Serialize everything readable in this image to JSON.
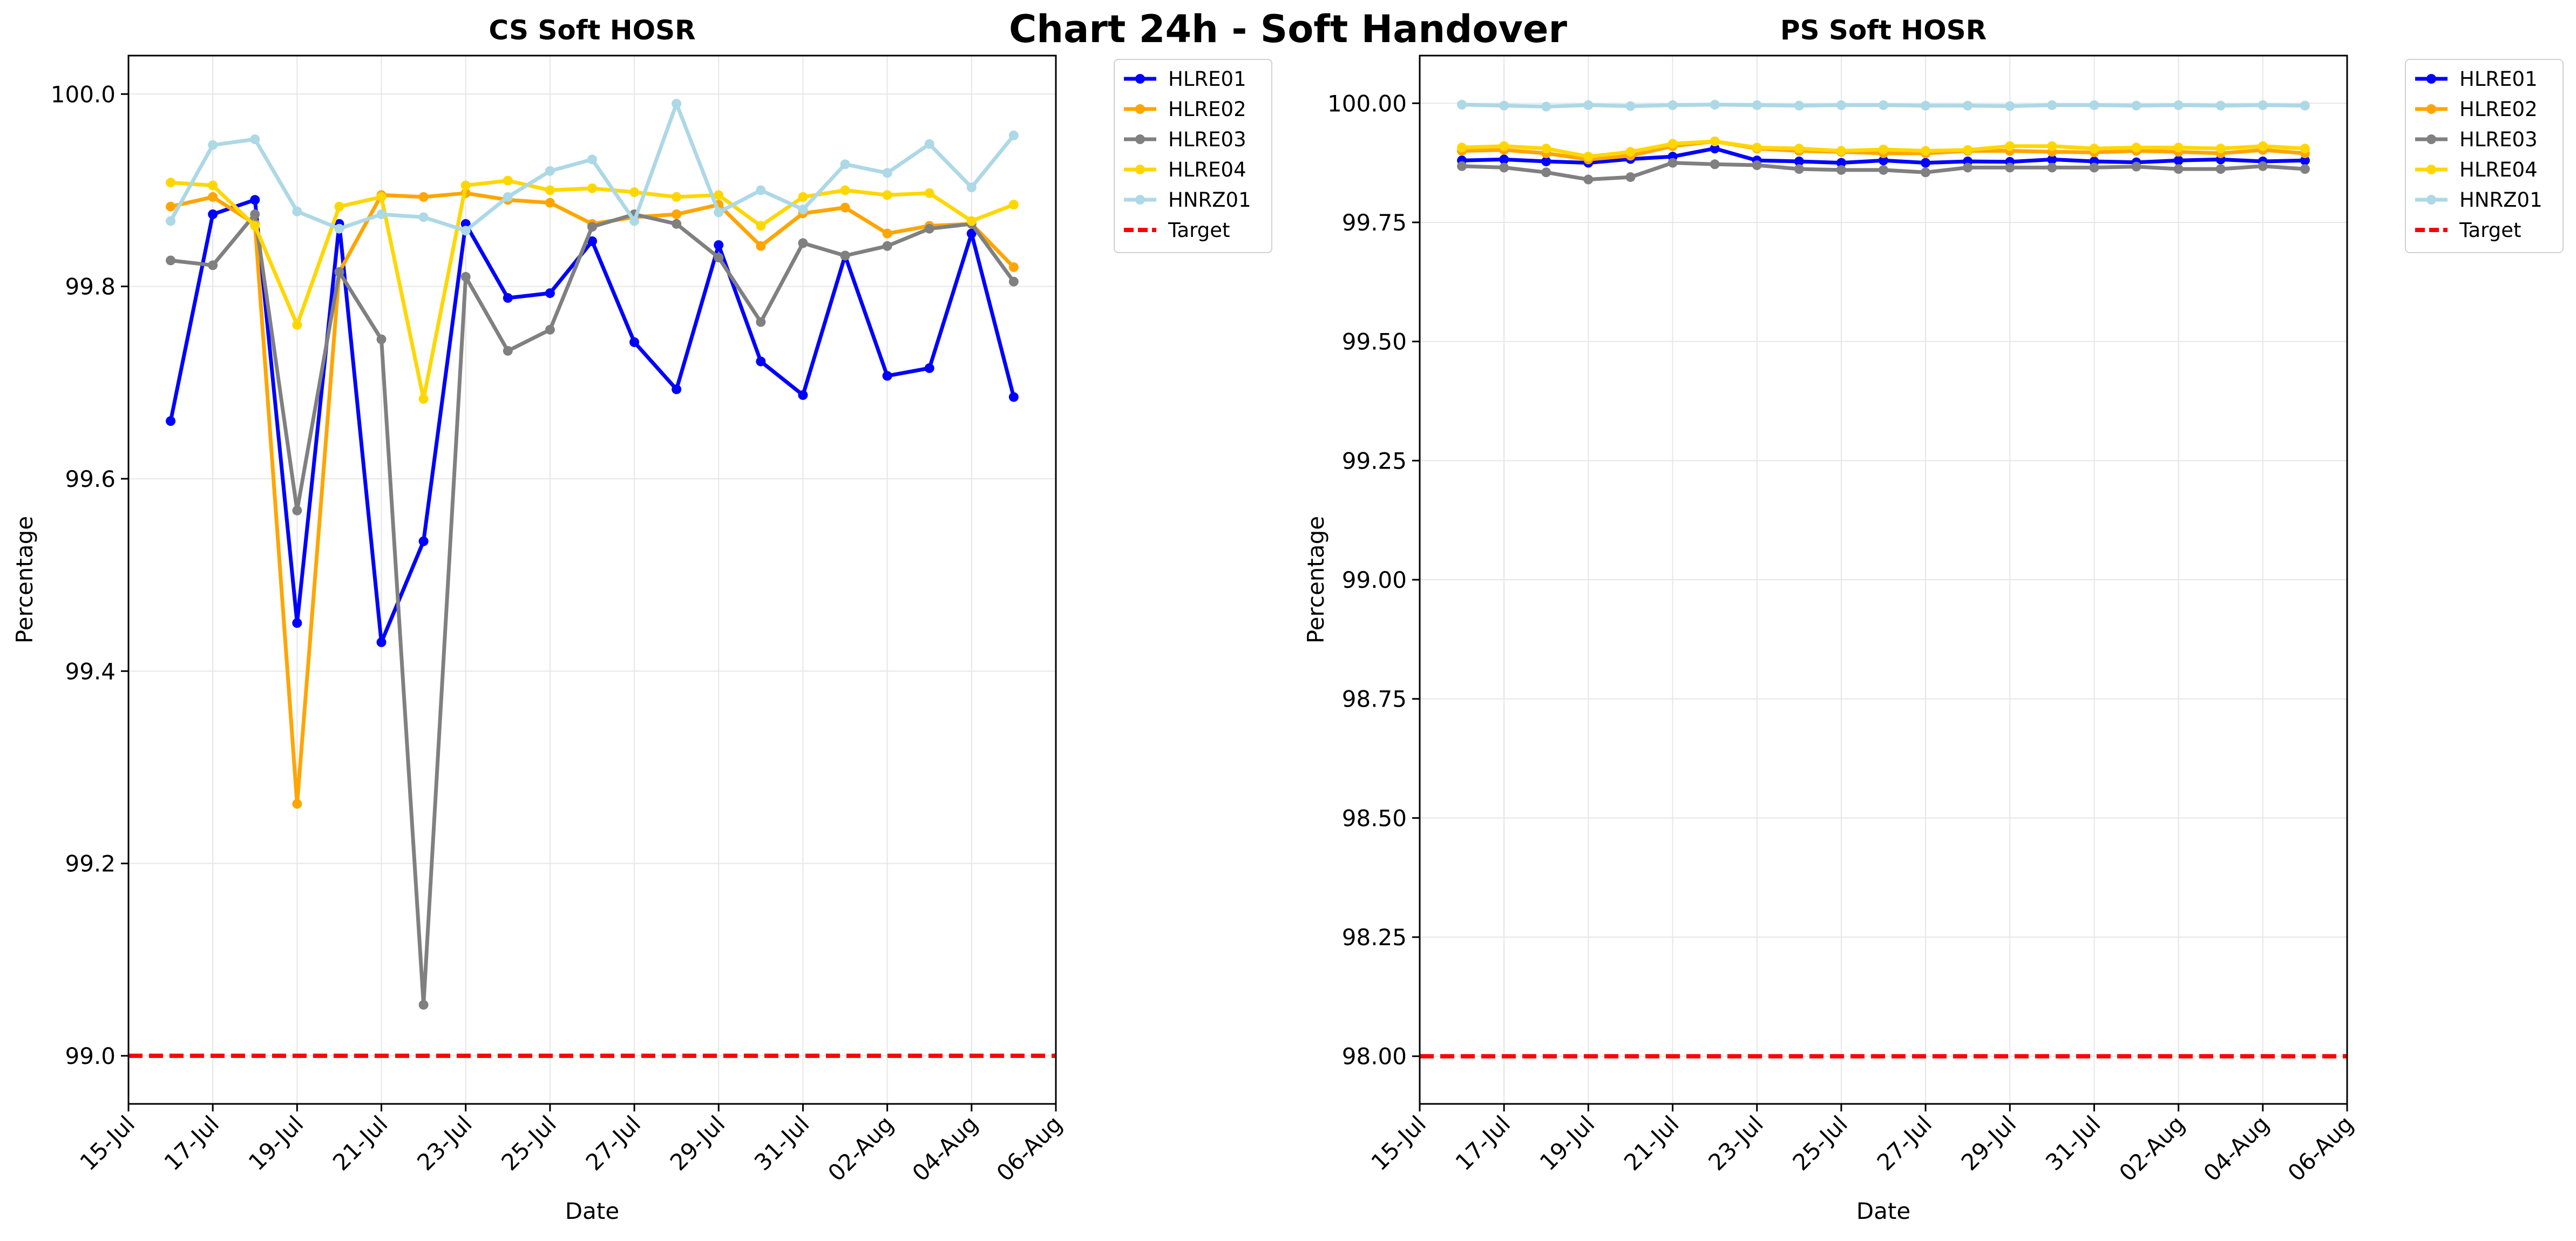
{
  "figure": {
    "title": "Chart 24h - Soft Handover",
    "background": "#ffffff"
  },
  "chart_data": [
    {
      "type": "line",
      "title": "CS Soft HOSR",
      "xlabel": "Date",
      "ylabel": "Percentage",
      "xlim": [
        "2024-07-15",
        "2024-08-06"
      ],
      "ylim": [
        98.95,
        100.04
      ],
      "x_ticks": [
        "15-Jul",
        "17-Jul",
        "19-Jul",
        "21-Jul",
        "23-Jul",
        "25-Jul",
        "27-Jul",
        "29-Jul",
        "31-Jul",
        "02-Aug",
        "04-Aug",
        "06-Aug"
      ],
      "y_ticks": [
        99.0,
        99.2,
        99.4,
        99.6,
        99.8,
        100.0
      ],
      "y_tick_decimals": 1,
      "grid": true,
      "legend_position": "outside-top-right",
      "x": [
        "2024-07-16",
        "2024-07-17",
        "2024-07-18",
        "2024-07-19",
        "2024-07-20",
        "2024-07-21",
        "2024-07-22",
        "2024-07-23",
        "2024-07-24",
        "2024-07-25",
        "2024-07-26",
        "2024-07-27",
        "2024-07-28",
        "2024-07-29",
        "2024-07-30",
        "2024-07-31",
        "2024-08-01",
        "2024-08-02",
        "2024-08-03",
        "2024-08-04",
        "2024-08-05"
      ],
      "series": [
        {
          "name": "HLRE01",
          "color": "#0000ff",
          "values": [
            99.66,
            99.875,
            99.89,
            99.45,
            99.865,
            99.43,
            99.535,
            99.865,
            99.788,
            99.793,
            99.847,
            99.742,
            99.693,
            99.843,
            99.722,
            99.687,
            99.832,
            99.707,
            99.715,
            99.855,
            99.685
          ]
        },
        {
          "name": "HLRE02",
          "color": "#ffa500",
          "values": [
            99.883,
            99.893,
            99.865,
            99.262,
            99.815,
            99.895,
            99.893,
            99.897,
            99.89,
            99.887,
            99.865,
            99.872,
            99.875,
            99.885,
            99.842,
            99.876,
            99.882,
            99.855,
            99.863,
            99.865,
            99.82
          ]
        },
        {
          "name": "HLRE03",
          "color": "#808080",
          "values": [
            99.827,
            99.822,
            99.875,
            99.567,
            99.815,
            99.745,
            99.053,
            99.81,
            99.733,
            99.755,
            99.862,
            99.875,
            99.865,
            99.83,
            99.763,
            99.845,
            99.832,
            99.842,
            99.86,
            99.865,
            99.805
          ]
        },
        {
          "name": "HLRE04",
          "color": "#ffd700",
          "values": [
            99.908,
            99.905,
            99.863,
            99.76,
            99.883,
            99.893,
            99.683,
            99.905,
            99.91,
            99.9,
            99.902,
            99.898,
            99.893,
            99.895,
            99.863,
            99.893,
            99.9,
            99.895,
            99.897,
            99.868,
            99.885
          ]
        },
        {
          "name": "HNRZ01",
          "color": "#add8e6",
          "values": [
            99.868,
            99.947,
            99.953,
            99.878,
            99.86,
            99.875,
            99.872,
            99.858,
            99.893,
            99.92,
            99.932,
            99.868,
            99.99,
            99.877,
            99.9,
            99.88,
            99.927,
            99.918,
            99.948,
            99.903,
            99.957
          ]
        }
      ],
      "target": {
        "name": "Target",
        "value": 99.0,
        "color": "#ff0000"
      }
    },
    {
      "type": "line",
      "title": "PS Soft HOSR",
      "xlabel": "Date",
      "ylabel": "Percentage",
      "xlim": [
        "2024-07-15",
        "2024-08-06"
      ],
      "ylim": [
        97.9,
        100.1
      ],
      "x_ticks": [
        "15-Jul",
        "17-Jul",
        "19-Jul",
        "21-Jul",
        "23-Jul",
        "25-Jul",
        "27-Jul",
        "29-Jul",
        "31-Jul",
        "02-Aug",
        "04-Aug",
        "06-Aug"
      ],
      "y_ticks": [
        98.0,
        98.25,
        98.5,
        98.75,
        99.0,
        99.25,
        99.5,
        99.75,
        100.0
      ],
      "y_tick_decimals": 2,
      "grid": true,
      "legend_position": "outside-top-right",
      "x": [
        "2024-07-16",
        "2024-07-17",
        "2024-07-18",
        "2024-07-19",
        "2024-07-20",
        "2024-07-21",
        "2024-07-22",
        "2024-07-23",
        "2024-07-24",
        "2024-07-25",
        "2024-07-26",
        "2024-07-27",
        "2024-07-28",
        "2024-07-29",
        "2024-07-30",
        "2024-07-31",
        "2024-08-01",
        "2024-08-02",
        "2024-08-03",
        "2024-08-04",
        "2024-08-05"
      ],
      "series": [
        {
          "name": "HLRE01",
          "color": "#0000ff",
          "values": [
            99.88,
            99.882,
            99.878,
            99.875,
            99.883,
            99.888,
            99.905,
            99.88,
            99.878,
            99.875,
            99.88,
            99.875,
            99.878,
            99.877,
            99.882,
            99.878,
            99.876,
            99.88,
            99.882,
            99.878,
            99.88
          ]
        },
        {
          "name": "HLRE02",
          "color": "#ffa500",
          "values": [
            99.9,
            99.902,
            99.895,
            99.882,
            99.89,
            99.91,
            99.92,
            99.905,
            99.9,
            99.898,
            99.895,
            99.895,
            99.9,
            99.9,
            99.898,
            99.897,
            99.9,
            99.898,
            99.895,
            99.902,
            99.895
          ]
        },
        {
          "name": "HLRE03",
          "color": "#808080",
          "values": [
            99.868,
            99.865,
            99.855,
            99.84,
            99.845,
            99.875,
            99.872,
            99.87,
            99.862,
            99.86,
            99.86,
            99.855,
            99.865,
            99.865,
            99.865,
            99.865,
            99.867,
            99.862,
            99.862,
            99.868,
            99.862
          ]
        },
        {
          "name": "HLRE04",
          "color": "#ffd700",
          "values": [
            99.907,
            99.91,
            99.905,
            99.888,
            99.898,
            99.915,
            99.92,
            99.907,
            99.905,
            99.9,
            99.903,
            99.9,
            99.902,
            99.91,
            99.91,
            99.905,
            99.907,
            99.907,
            99.905,
            99.91,
            99.905
          ]
        },
        {
          "name": "HNRZ01",
          "color": "#add8e6",
          "values": [
            99.997,
            99.995,
            99.993,
            99.996,
            99.994,
            99.996,
            99.997,
            99.996,
            99.995,
            99.996,
            99.996,
            99.995,
            99.995,
            99.994,
            99.996,
            99.996,
            99.995,
            99.996,
            99.995,
            99.996,
            99.995
          ]
        }
      ],
      "target": {
        "name": "Target",
        "value": 98.0,
        "color": "#ff0000"
      }
    }
  ]
}
